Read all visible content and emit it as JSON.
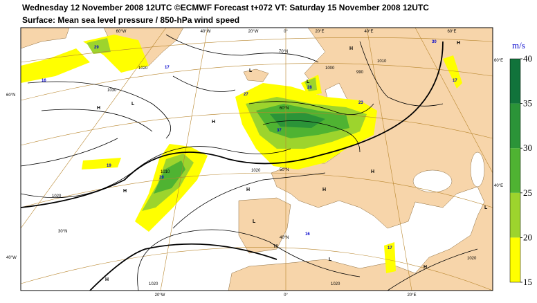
{
  "header": {
    "line1": "Wednesday 12 November 2008 12UTC ©ECMWF Forecast t+072 VT: Saturday 15 November 2008 12UTC",
    "line2": "Surface: Mean sea level pressure / 850-hPa wind speed"
  },
  "axes": {
    "top": [
      "60°W",
      "40°W",
      "20°W",
      "0°",
      "20°E",
      "40°E",
      "60°E"
    ],
    "bottom": [
      "20°W",
      "0°",
      "20°E"
    ],
    "left": [
      "60°N",
      "40°W"
    ],
    "right": [
      "60°E",
      "40°E"
    ],
    "inner": [
      "70°N",
      "60°N",
      "50°N",
      "40°N",
      "30°N"
    ]
  },
  "pressure_centers": [
    "H",
    "L",
    "H",
    "H",
    "H",
    "H",
    "L",
    "H",
    "H",
    "L",
    "H",
    "L",
    "H",
    "L",
    "L",
    "H",
    "H"
  ],
  "isobar_labels": [
    "1020",
    "1030",
    "1020",
    "1010",
    "1000",
    "990",
    "1020",
    "1020",
    "1020",
    "1020",
    "1010"
  ],
  "wind_labels": [
    "29",
    "27",
    "37",
    "29",
    "16",
    "17",
    "19",
    "30",
    "17",
    "28",
    "23",
    "16",
    "17"
  ],
  "colorbar": {
    "unit": "m/s",
    "ticks": [
      15,
      20,
      25,
      30,
      35,
      40
    ],
    "colors": [
      "#ffff00",
      "#9dd42d",
      "#4fb332",
      "#2b9438",
      "#11733b"
    ]
  }
}
